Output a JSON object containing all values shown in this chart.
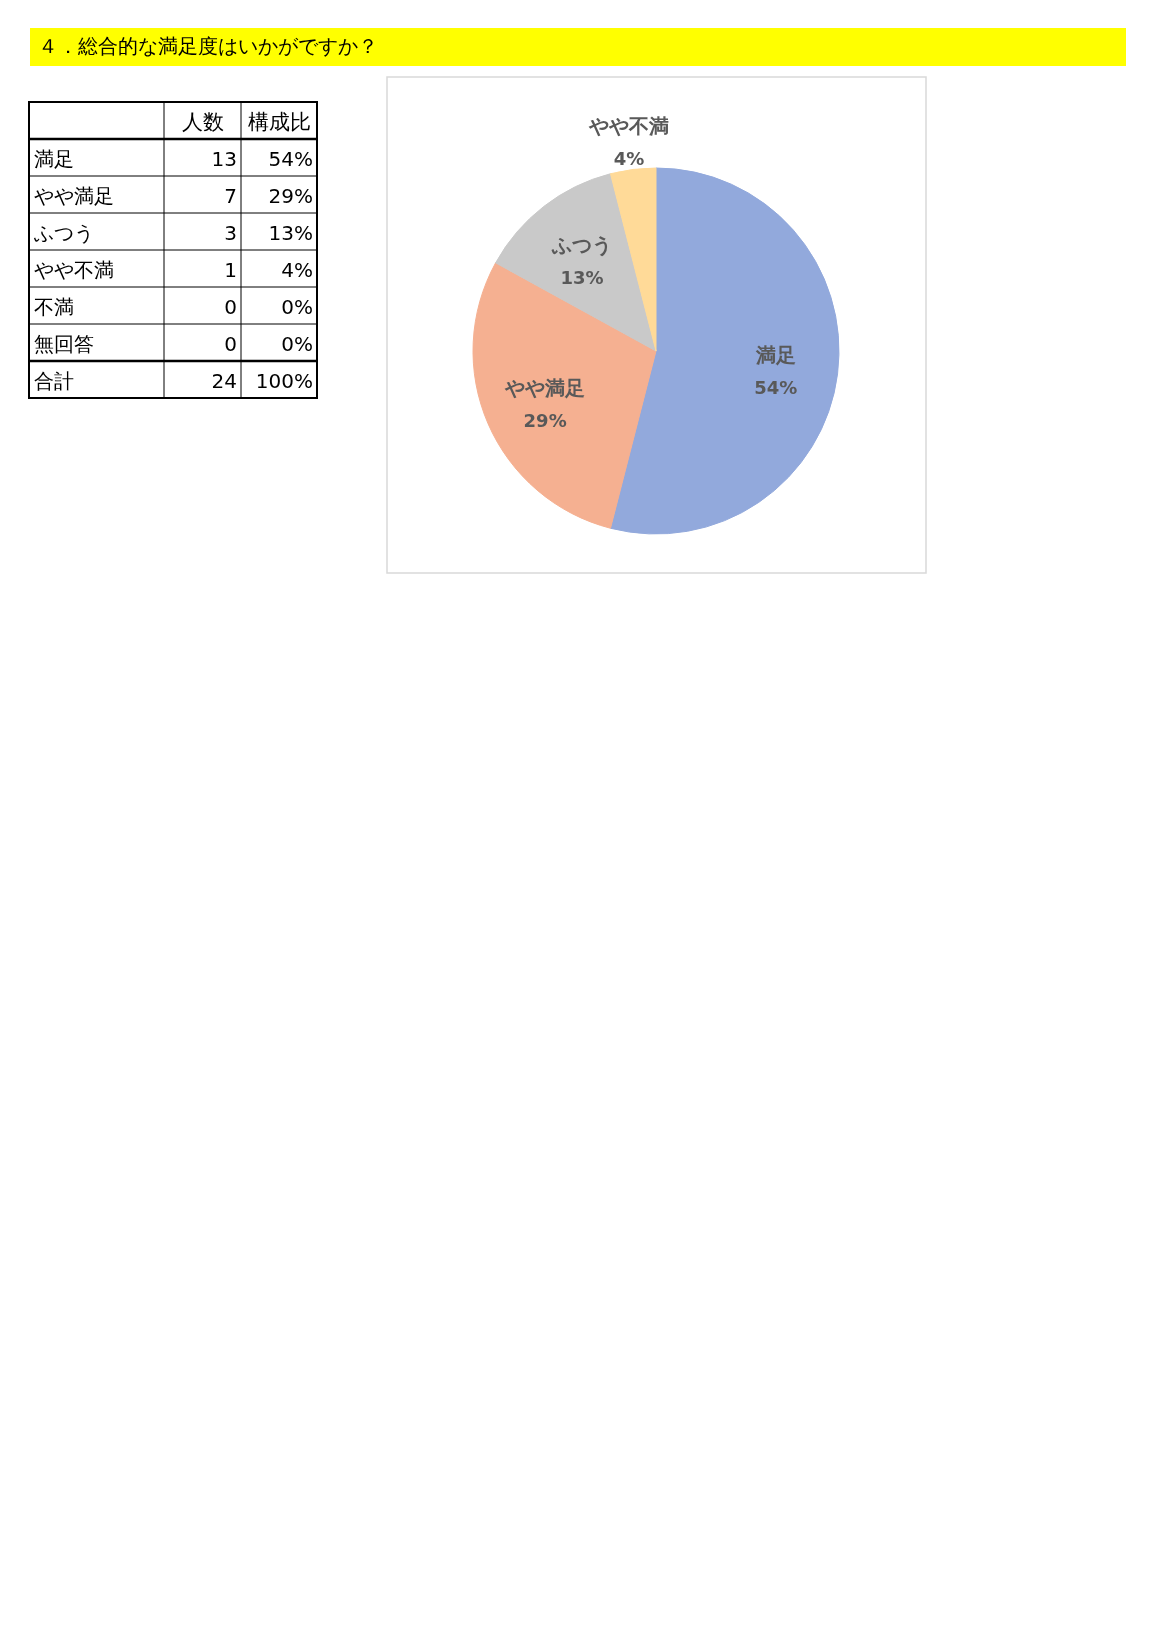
{
  "chart_data": [
    {
      "type": "other",
      "title": "４．総合的な満足度はいかがですか？",
      "categories": [
        "満足",
        "やや満足",
        "ふつう",
        "やや不満",
        "不満",
        "無回答",
        "合計"
      ],
      "data_labels": true,
      "series": [
        {
          "name": "人数",
          "values": [
            13,
            7,
            3,
            1,
            0,
            0,
            24
          ]
        },
        {
          "name": "構成比",
          "values": [
            54,
            29,
            13,
            4,
            0,
            0,
            100
          ],
          "value_labels": [
            "54%",
            "29%",
            "13%",
            "4%",
            "0%",
            "0%",
            "100%"
          ]
        }
      ]
    },
    {
      "type": "pie",
      "categories": [
        "満足",
        "やや満足",
        "ふつう",
        "やや不満"
      ],
      "values": [
        54,
        29,
        13,
        4
      ],
      "value_labels": [
        "54%",
        "29%",
        "13%",
        "4%"
      ],
      "colors": [
        "#92a9dc",
        "#f5b091",
        "#c9c9c9",
        "#ffda98"
      ]
    }
  ]
}
